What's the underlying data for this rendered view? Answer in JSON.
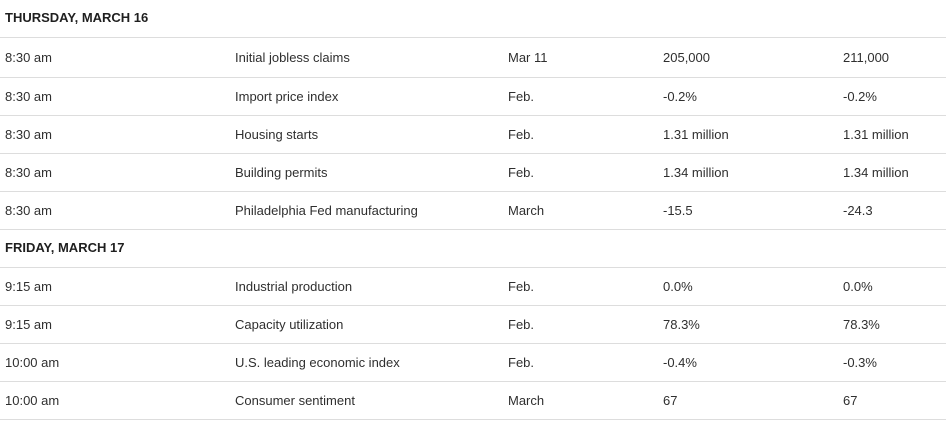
{
  "days": [
    {
      "label": "THURSDAY, MARCH 16",
      "rows": [
        {
          "time": "8:30 am",
          "report": "Initial jobless claims",
          "period": "Mar 11",
          "value1": "205,000",
          "value2": "211,000"
        },
        {
          "time": "8:30 am",
          "report": "Import price index",
          "period": "Feb.",
          "value1": "-0.2%",
          "value2": "-0.2%"
        },
        {
          "time": "8:30 am",
          "report": "Housing starts",
          "period": "Feb.",
          "value1": "1.31 million",
          "value2": "1.31 million"
        },
        {
          "time": "8:30 am",
          "report": "Building permits",
          "period": "Feb.",
          "value1": "1.34 million",
          "value2": "1.34 million"
        },
        {
          "time": "8:30 am",
          "report": "Philadelphia Fed manufacturing",
          "period": "March",
          "value1": "-15.5",
          "value2": "-24.3"
        }
      ]
    },
    {
      "label": "FRIDAY, MARCH 17",
      "rows": [
        {
          "time": "9:15 am",
          "report": "Industrial production",
          "period": "Feb.",
          "value1": "0.0%",
          "value2": "0.0%"
        },
        {
          "time": "9:15 am",
          "report": "Capacity utilization",
          "period": "Feb.",
          "value1": "78.3%",
          "value2": "78.3%"
        },
        {
          "time": "10:00 am",
          "report": "U.S. leading economic index",
          "period": "Feb.",
          "value1": "-0.4%",
          "value2": "-0.3%"
        },
        {
          "time": "10:00 am",
          "report": "Consumer sentiment",
          "period": "March",
          "value1": "67",
          "value2": "67"
        }
      ]
    }
  ]
}
